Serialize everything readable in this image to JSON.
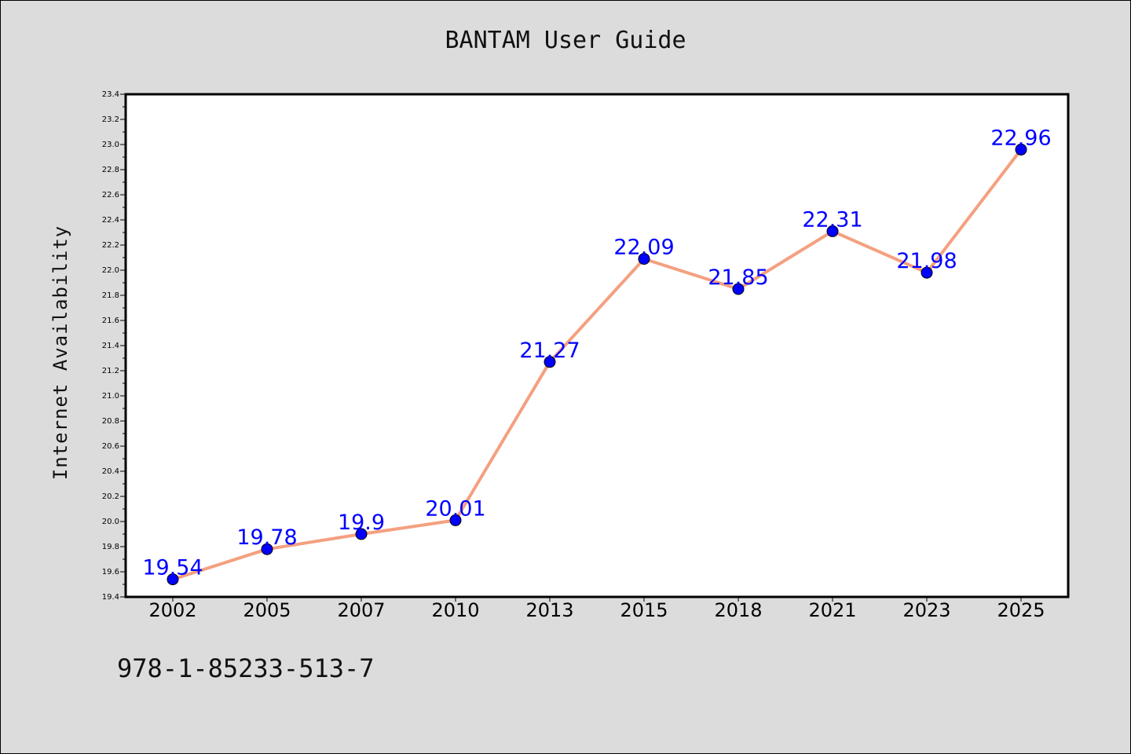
{
  "page": {
    "title": "BANTAM User Guide",
    "footer_code": "978-1-85233-513-7"
  },
  "chart_data": {
    "type": "line",
    "title": "BANTAM User Guide",
    "xlabel": "",
    "ylabel": "Internet Availability",
    "categories": [
      "2002",
      "2005",
      "2007",
      "2010",
      "2013",
      "2015",
      "2018",
      "2021",
      "2023",
      "2025"
    ],
    "values": [
      19.54,
      19.78,
      19.9,
      20.01,
      21.27,
      22.09,
      21.85,
      22.31,
      21.98,
      22.96
    ],
    "data_labels": [
      "19.54",
      "19.78",
      "19.9",
      "20.01",
      "21.27",
      "22.09",
      "21.85",
      "22.31",
      "21.98",
      "22.96"
    ],
    "ylim": [
      19.4,
      23.4
    ],
    "y_ticks": [
      "19.4",
      "19.6",
      "19.8",
      "20.0",
      "20.2",
      "20.4",
      "20.6",
      "20.8",
      "21.0",
      "21.2",
      "21.4",
      "21.6",
      "21.8",
      "22.0",
      "22.2",
      "22.4",
      "22.6",
      "22.8",
      "23.0",
      "23.2",
      "23.4"
    ],
    "grid": false,
    "legend": "none",
    "colors": {
      "line": "#f4a07f",
      "marker": "#0000ff",
      "label": "#0000ff",
      "background": "#dcdcdc",
      "plot_background": "#ffffff"
    }
  }
}
